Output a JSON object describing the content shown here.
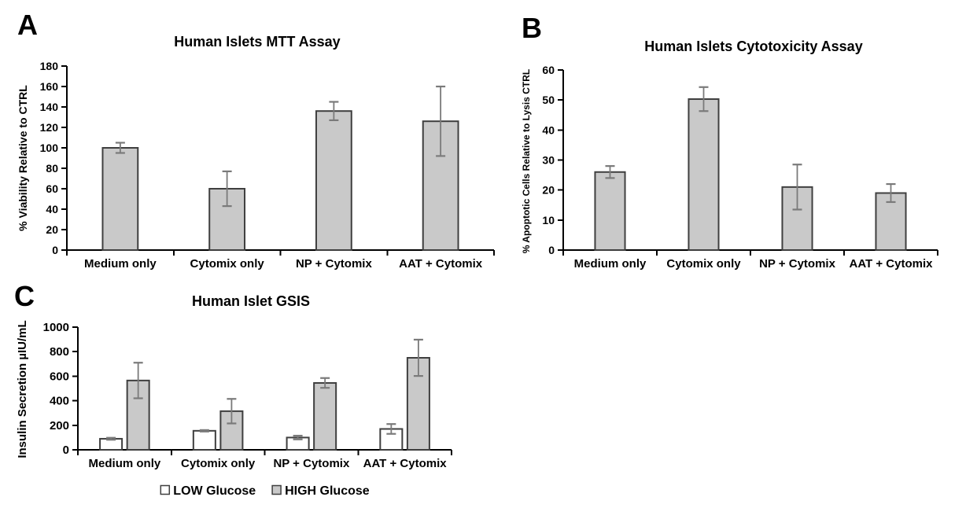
{
  "colors": {
    "background": "#ffffff",
    "bar_fill_gray": "#c9c9c9",
    "bar_fill_white": "#ffffff",
    "bar_stroke": "#3f3f3f",
    "error_bar": "#7a7a7a",
    "axis": "#000000",
    "text": "#000000"
  },
  "chart_data": [
    {
      "panel_label": "A",
      "type": "bar",
      "title": "Human Islets MTT Assay",
      "ylabel": "% Viability Relative to CTRL",
      "xlabel": "",
      "categories": [
        "Medium only",
        "Cytomix only",
        "NP + Cytomix",
        "AAT + Cytomix"
      ],
      "series": [
        {
          "name": "",
          "fill": "#c9c9c9",
          "values": [
            100,
            60,
            136,
            126
          ],
          "errors": [
            5,
            17,
            9,
            34
          ]
        }
      ],
      "ylim": [
        0,
        180
      ],
      "ytick_step": 20,
      "grid": false,
      "legend": false
    },
    {
      "panel_label": "B",
      "type": "bar",
      "title": "Human Islets Cytotoxicity Assay",
      "ylabel": "% Apoptotic Cells Relative to Lysis CTRL",
      "xlabel": "",
      "categories": [
        "Medium only",
        "Cytomix only",
        "NP + Cytomix",
        "AAT + Cytomix"
      ],
      "series": [
        {
          "name": "",
          "fill": "#c9c9c9",
          "values": [
            26,
            50.3,
            21,
            19
          ],
          "errors": [
            2,
            4,
            7.5,
            3
          ]
        }
      ],
      "ylim": [
        0,
        60
      ],
      "ytick_step": 10,
      "grid": false,
      "legend": false
    },
    {
      "panel_label": "C",
      "type": "bar",
      "title": "Human Islet GSIS",
      "ylabel": "Insulin Secretion µIU/mL",
      "xlabel": "",
      "categories": [
        "Medium only",
        "Cytomix only",
        "NP + Cytomix",
        "AAT + Cytomix"
      ],
      "series": [
        {
          "name": "LOW Glucose",
          "fill": "#ffffff",
          "values": [
            90,
            155,
            100,
            170
          ],
          "errors": [
            8,
            6,
            15,
            40
          ]
        },
        {
          "name": "HIGH Glucose",
          "fill": "#c9c9c9",
          "values": [
            565,
            315,
            545,
            750
          ],
          "errors": [
            145,
            100,
            40,
            148
          ]
        }
      ],
      "ylim": [
        0,
        1000
      ],
      "ytick_step": 200,
      "grid": false,
      "legend": true,
      "legend_position": "bottom",
      "legend_labels": [
        "LOW Glucose",
        "HIGH Glucose"
      ]
    }
  ]
}
